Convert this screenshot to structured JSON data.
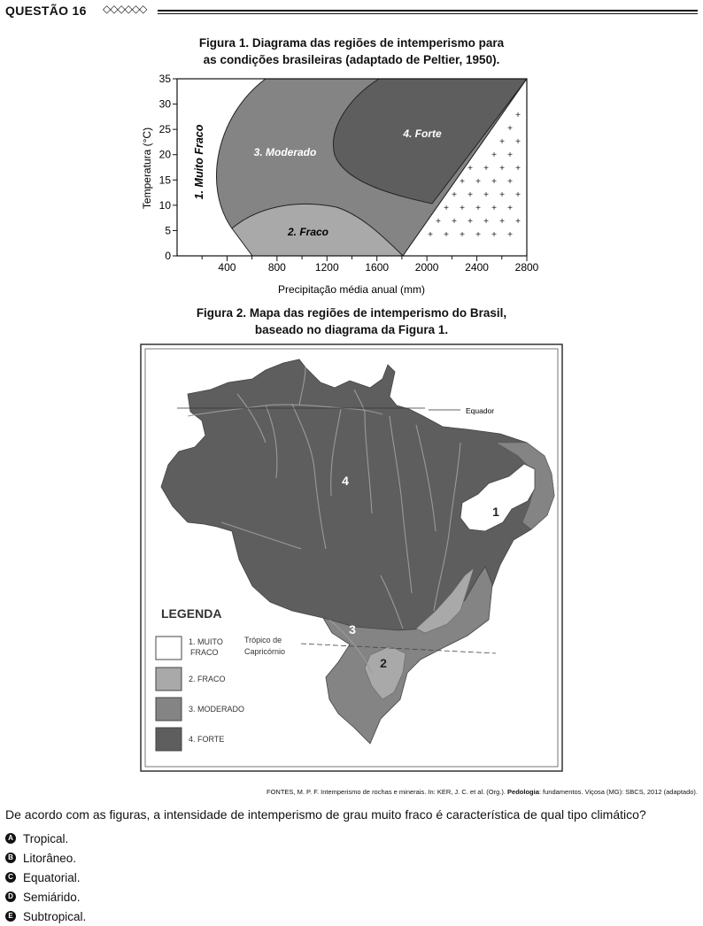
{
  "header": {
    "question_label": "QUESTÃO 16",
    "diamonds": "◇◇◇◇◇◇"
  },
  "figure1": {
    "title_line1": "Figura 1. Diagrama das regiões de intemperismo para",
    "title_line2": "as condições brasileiras (adaptado de Peltier, 1950).",
    "chart_data": {
      "type": "area",
      "xlabel": "Precipitação média anual (mm)",
      "ylabel": "Temperatura (°C)",
      "xlim": [
        0,
        2800
      ],
      "ylim": [
        0,
        35
      ],
      "x_ticks": [
        "400",
        "800",
        "1200",
        "1600",
        "2000",
        "2400",
        "2800"
      ],
      "y_ticks": [
        "0",
        "5",
        "10",
        "15",
        "20",
        "25",
        "30",
        "35"
      ],
      "regions": [
        {
          "label": "1. Muito Fraco",
          "color": "#ffffff"
        },
        {
          "label": "2. Fraco",
          "color": "#a9a9a9"
        },
        {
          "label": "3. Moderado",
          "color": "#848484"
        },
        {
          "label": "4. Forte",
          "color": "#5e5e5e"
        }
      ]
    }
  },
  "figure2": {
    "title_line1": "Figura 2. Mapa das regiões de intemperismo do Brasil,",
    "title_line2": "baseado no diagrama da Figura 1.",
    "equator_label": "Equador",
    "tropic_label_1": "Trópico de",
    "tropic_label_2": "Capricórnio",
    "region_labels": [
      "4",
      "1",
      "3",
      "2"
    ],
    "legend": {
      "title": "LEGENDA",
      "items": [
        {
          "line1": "1. MUITO",
          "line2": "FRACO",
          "color": "#ffffff"
        },
        {
          "line1": "2. FRACO",
          "line2": "",
          "color": "#a9a9a9"
        },
        {
          "line1": "3. MODERADO",
          "line2": "",
          "color": "#848484"
        },
        {
          "line1": "4. FORTE",
          "line2": "",
          "color": "#5e5e5e"
        }
      ]
    }
  },
  "source": {
    "prefix": "FONTES, M. P. F. Intemperismo de rochas e minerais. In: KER, J. C. et al. (Org.). ",
    "bold": "Pedologia",
    "suffix": ": fundamentos. Viçosa (MG): SBCS, 2012 (adaptado)."
  },
  "question": "De acordo com as figuras, a intensidade de intemperismo de grau muito fraco é característica de qual tipo climático?",
  "options": [
    {
      "letter": "A",
      "text": "Tropical."
    },
    {
      "letter": "B",
      "text": "Litorâneo."
    },
    {
      "letter": "C",
      "text": "Equatorial."
    },
    {
      "letter": "D",
      "text": "Semiárido."
    },
    {
      "letter": "E",
      "text": "Subtropical."
    }
  ]
}
